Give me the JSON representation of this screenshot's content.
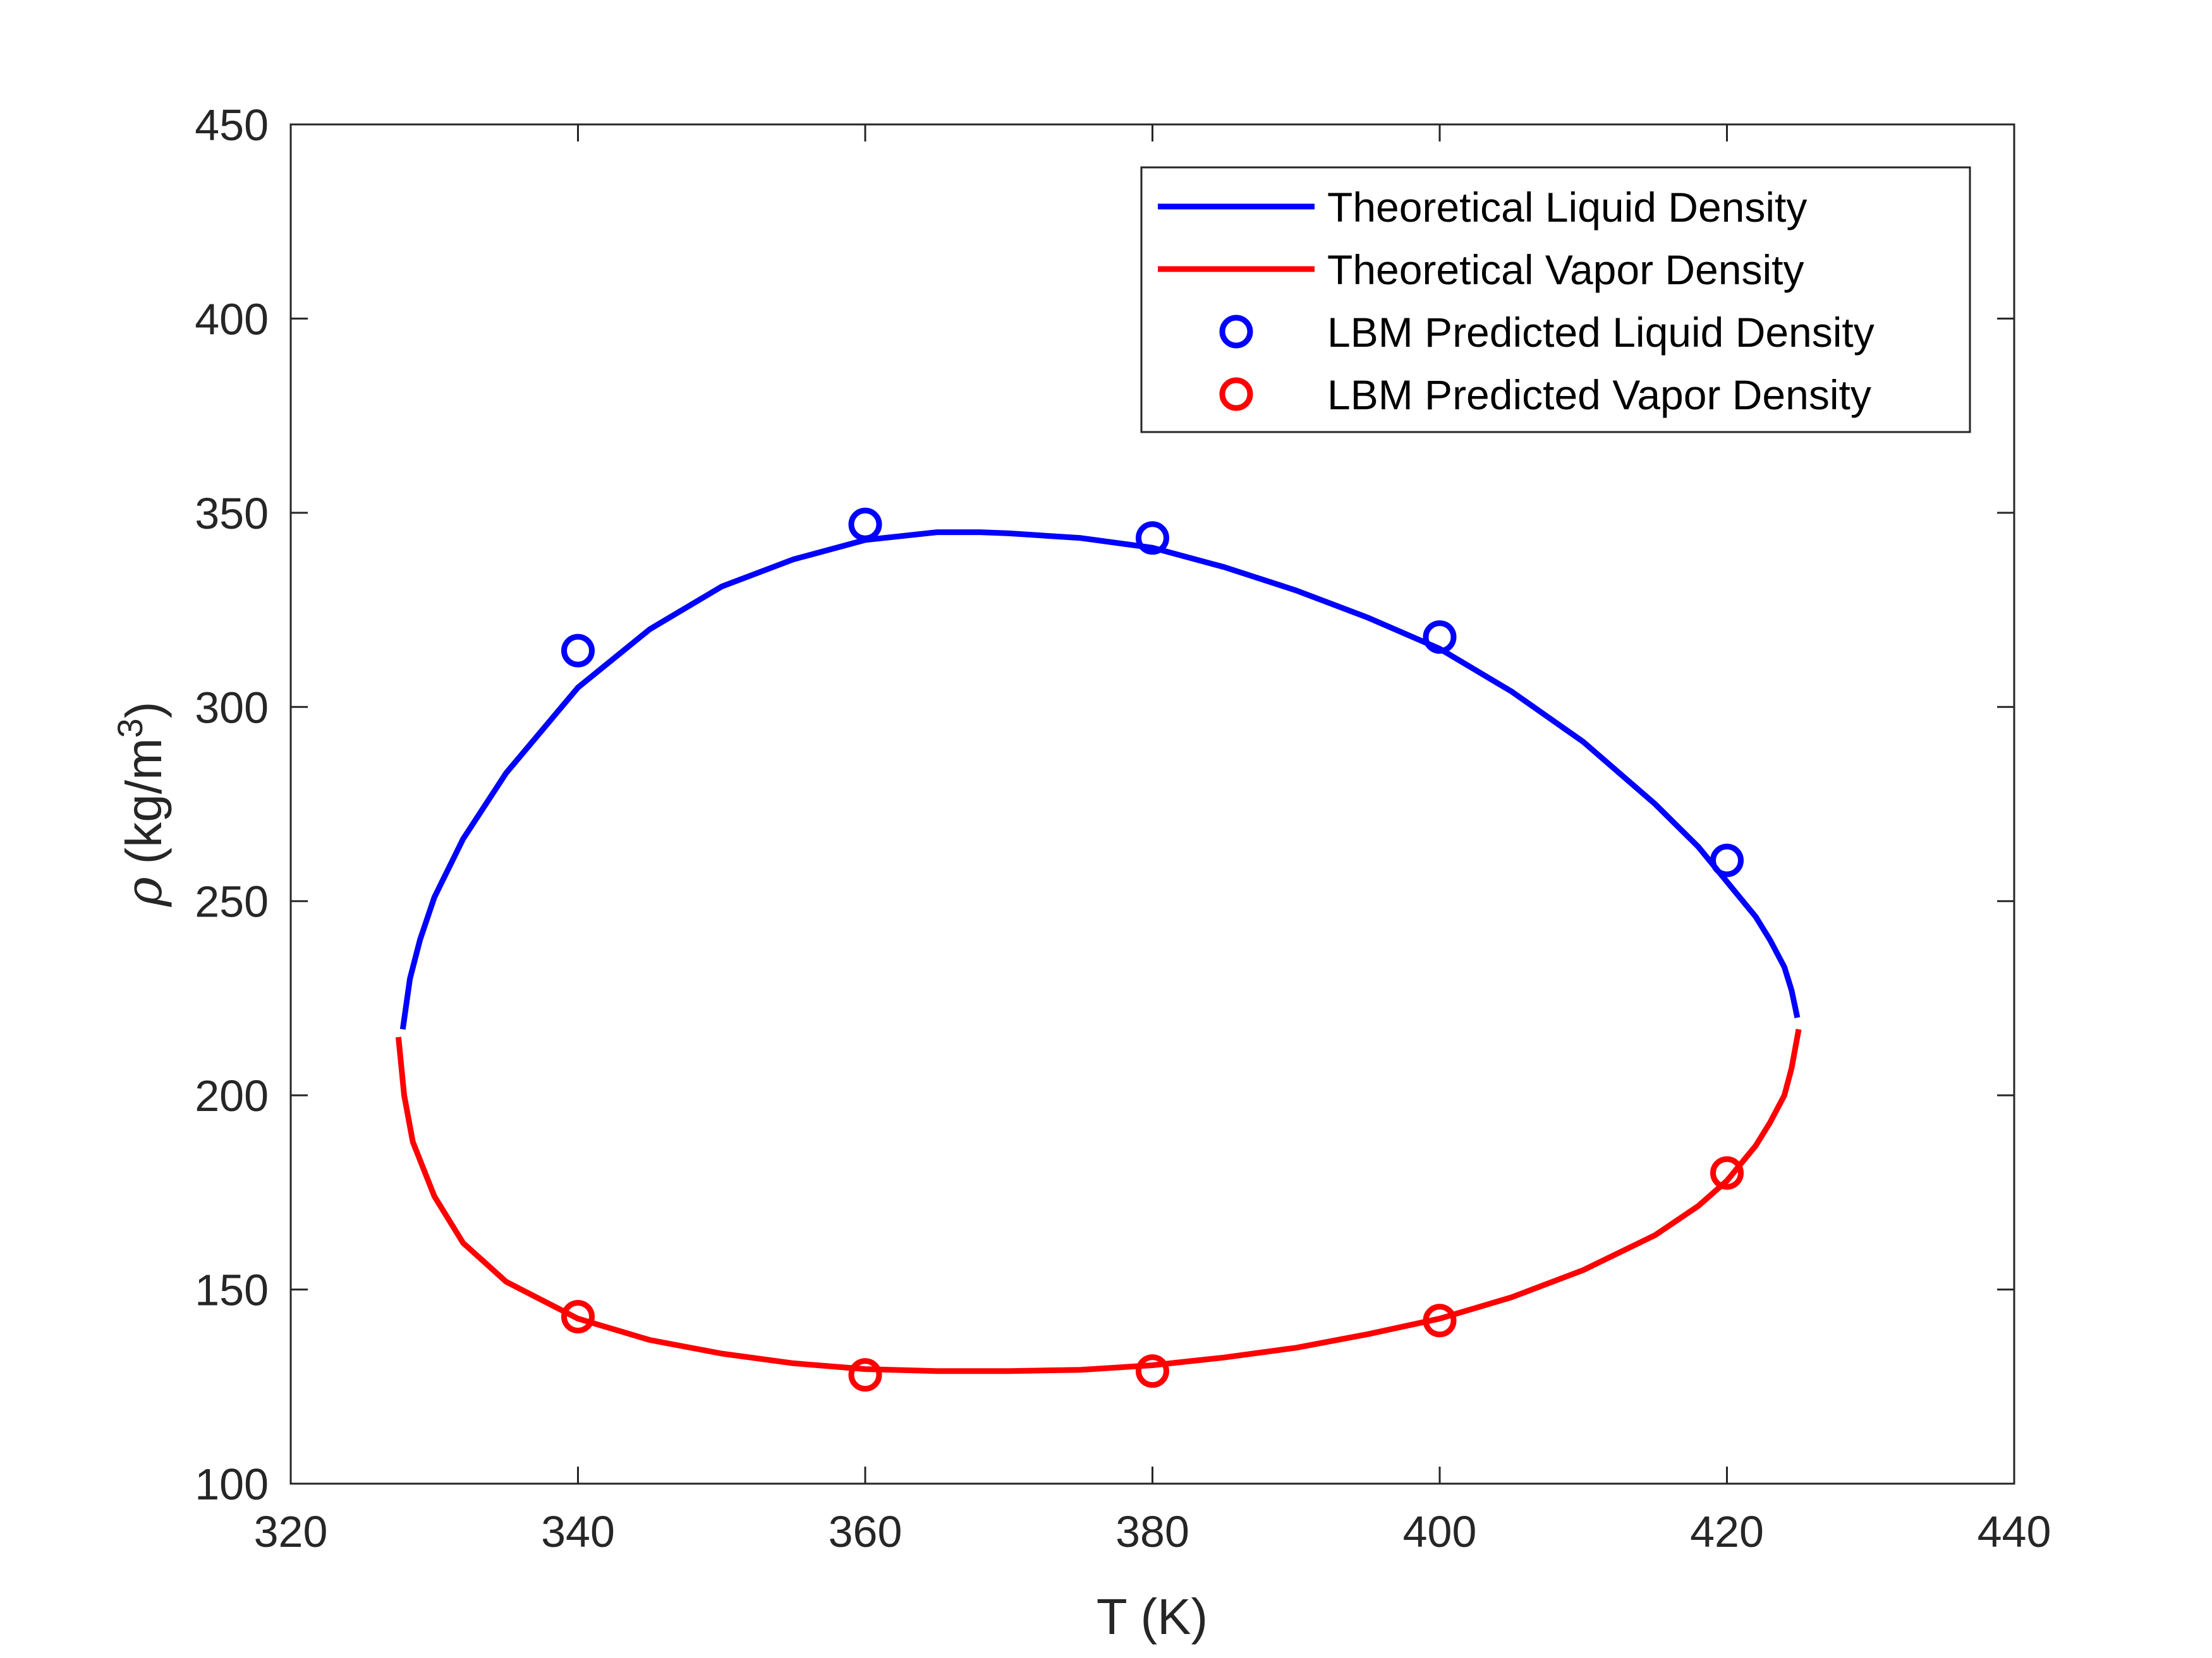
{
  "chart_data": {
    "type": "line",
    "xlabel": "T (K)",
    "ylabel_symbol": "ρ",
    "ylabel_unit_base": "(kg/m",
    "ylabel_unit_exp": "3",
    "ylabel_unit_close": ")",
    "xlim": [
      320,
      440
    ],
    "ylim": [
      100,
      450
    ],
    "xticks": [
      320,
      340,
      360,
      380,
      400,
      420,
      440
    ],
    "yticks": [
      100,
      150,
      200,
      250,
      300,
      350,
      400,
      450
    ],
    "grid": false,
    "legend_placement": "top-right",
    "series": [
      {
        "name": "Theoretical Liquid Density",
        "style": "line",
        "color": "#0000ff",
        "x": [
          327.8,
          328.3,
          329,
          330,
          332,
          335,
          340,
          345,
          350,
          355,
          360,
          365,
          368,
          370,
          375,
          380,
          385,
          390,
          395,
          400,
          405,
          410,
          415,
          418,
          420,
          422,
          423,
          424,
          424.5,
          424.9
        ],
        "y": [
          217,
          230,
          240,
          251,
          266,
          283,
          305,
          320,
          331,
          338,
          343,
          345,
          345,
          344.7,
          343.5,
          341,
          336,
          330,
          323,
          315,
          304,
          291,
          275,
          264,
          255,
          246,
          240,
          233,
          227,
          220
        ]
      },
      {
        "name": "Theoretical Vapor Density",
        "style": "line",
        "color": "#ff0000",
        "x": [
          327.5,
          327.9,
          328.5,
          330,
          332,
          335,
          340,
          345,
          350,
          355,
          360,
          365,
          370,
          375,
          380,
          385,
          390,
          395,
          400,
          405,
          410,
          415,
          418,
          420,
          422,
          423,
          424,
          424.5,
          425
        ],
        "y": [
          215,
          200,
          188,
          174,
          162,
          152,
          142.5,
          137,
          133.5,
          131,
          129.5,
          129,
          129,
          129.3,
          130.5,
          132.5,
          135,
          138.5,
          142.5,
          148,
          155,
          164,
          171.5,
          178,
          187,
          193,
          200,
          207,
          217
        ]
      },
      {
        "name": "LBM Predicted Liquid Density",
        "style": "marker",
        "color": "#0000ff",
        "x": [
          340,
          360,
          380,
          400,
          420
        ],
        "y": [
          314.5,
          347,
          343.5,
          318,
          260.5
        ]
      },
      {
        "name": "LBM Predicted Vapor Density",
        "style": "marker",
        "color": "#ff0000",
        "x": [
          340,
          360,
          380,
          400,
          420
        ],
        "y": [
          143,
          128,
          129,
          142,
          180
        ]
      }
    ]
  }
}
